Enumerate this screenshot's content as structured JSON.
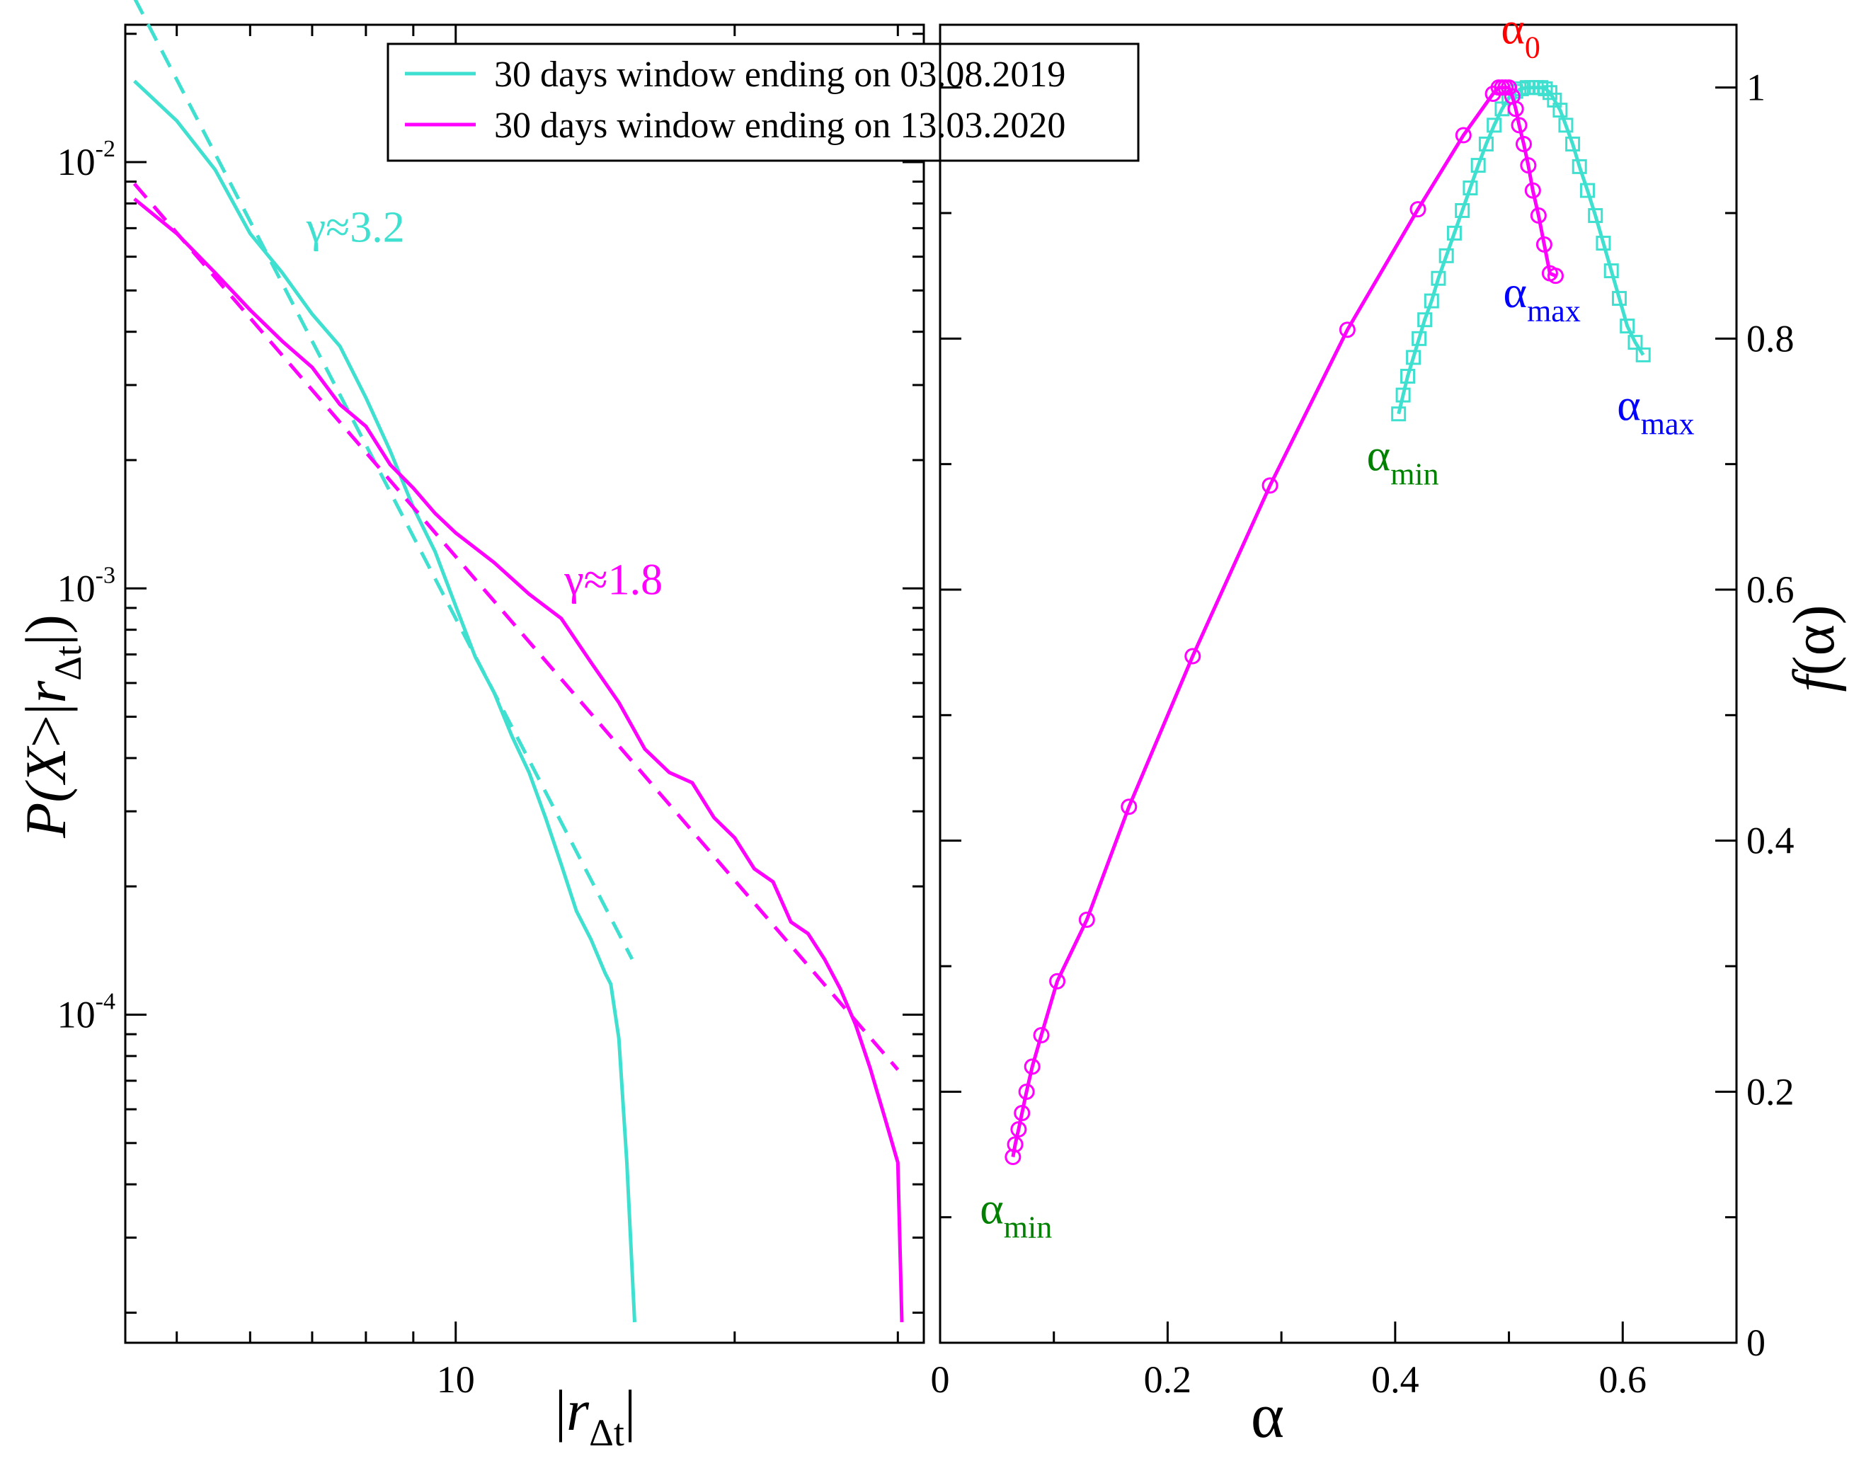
{
  "chart_data": [
    {
      "type": "line",
      "panel": "left",
      "scale": {
        "x": "log",
        "y": "log"
      },
      "xlim": [
        4.4,
        32
      ],
      "ylim": [
        1.7e-05,
        0.021
      ],
      "xlabel_parts": {
        "open": "|",
        "var": "r",
        "sub": "Δt",
        "close": "|"
      },
      "ylabel_parts": {
        "fn": "P(",
        "var": "X",
        "mid": ">|",
        "var2": "r",
        "sub": "Δt",
        "close": "|)"
      },
      "x_tick_labels": [
        {
          "value": 10,
          "label": "10"
        }
      ],
      "y_tick_labels": [
        {
          "value": 0.01,
          "base": "10",
          "exp": "-2"
        },
        {
          "value": 0.001,
          "base": "10",
          "exp": "-3"
        },
        {
          "value": 0.0001,
          "base": "10",
          "exp": "-4"
        }
      ],
      "legend": {
        "placement": "top",
        "entries": [
          {
            "label": "30 days window ending on 03.08.2019",
            "color": "#40e0d0"
          },
          {
            "label": "30 days window ending on 13.03.2020",
            "color": "#ff00ff"
          }
        ]
      },
      "series": [
        {
          "name": "30 days window ending on 03.08.2019",
          "color": "#40e0d0",
          "style": "solid",
          "x": [
            4.5,
            5.0,
            5.5,
            6.0,
            6.5,
            7.0,
            7.5,
            8.0,
            8.5,
            9.0,
            9.5,
            10.0,
            10.5,
            11.0,
            11.5,
            12.0,
            12.5,
            13.0,
            13.5,
            14.0,
            14.5,
            14.7,
            15.0,
            15.3,
            15.6
          ],
          "y": [
            0.0155,
            0.0125,
            0.0096,
            0.0068,
            0.0055,
            0.0044,
            0.0037,
            0.0028,
            0.0021,
            0.00155,
            0.00122,
            0.00091,
            0.00069,
            0.00057,
            0.00045,
            0.00037,
            0.00029,
            0.000225,
            0.000175,
            0.00015,
            0.000125,
            0.000118,
            8.8e-05,
            4.5e-05,
            1.9e-05
          ]
        },
        {
          "name": "γ≈3.2 fit",
          "color": "#40e0d0",
          "style": "dashed",
          "x": [
            4.5,
            15.5
          ],
          "y": [
            0.0243,
            0.000135
          ]
        },
        {
          "name": "30 days window ending on 13.03.2020",
          "color": "#ff00ff",
          "style": "solid",
          "x": [
            4.5,
            5.0,
            5.5,
            6.0,
            6.5,
            7.0,
            7.5,
            8.0,
            8.5,
            9.0,
            9.5,
            10.0,
            11.0,
            12.0,
            13.0,
            14.0,
            15.0,
            16.0,
            17.0,
            18.0,
            19.0,
            20.0,
            21.0,
            22.0,
            23.0,
            24.0,
            25.0,
            26.0,
            27.0,
            28.0,
            29.0,
            30.0,
            30.3
          ],
          "y": [
            0.0082,
            0.0068,
            0.0055,
            0.0045,
            0.0038,
            0.0033,
            0.0027,
            0.0024,
            0.00195,
            0.00172,
            0.0015,
            0.00135,
            0.00115,
            0.00097,
            0.00085,
            0.00067,
            0.00054,
            0.00042,
            0.00037,
            0.00035,
            0.00029,
            0.00026,
            0.00022,
            0.000205,
            0.000165,
            0.000155,
            0.000135,
            0.000115,
            9.5e-05,
            7.5e-05,
            5.8e-05,
            4.5e-05,
            1.9e-05
          ]
        },
        {
          "name": "γ≈1.8 fit",
          "color": "#ff00ff",
          "style": "dashed",
          "x": [
            4.5,
            30.0
          ],
          "y": [
            0.0089,
            7.43e-05
          ]
        }
      ],
      "annotations": [
        {
          "text": "γ≈3.2",
          "color": "#40e0d0",
          "x": 6.9,
          "y": 0.0065
        },
        {
          "text": "γ≈1.8",
          "color": "#ff00ff",
          "x": 13.1,
          "y": 0.00097
        }
      ]
    },
    {
      "type": "line",
      "panel": "right",
      "xlim": [
        0,
        0.7
      ],
      "ylim": [
        0,
        1.05
      ],
      "xlabel": "α",
      "ylabel_parts": {
        "fn": "f",
        "arg": "(α)"
      },
      "x_ticks": [
        0,
        0.2,
        0.4,
        0.6
      ],
      "x_tick_labels": [
        "0",
        "0.2",
        "0.4",
        "0.6"
      ],
      "y_ticks": [
        0,
        0.2,
        0.4,
        0.6,
        0.8,
        1.0
      ],
      "y_tick_labels": [
        "0",
        "0.2",
        "0.4",
        "0.6",
        "0.8",
        "1"
      ],
      "series": [
        {
          "name": "30 days window ending on 03.08.2019",
          "color": "#40e0d0",
          "marker": "square",
          "x": [
            0.403,
            0.407,
            0.411,
            0.416,
            0.421,
            0.426,
            0.432,
            0.438,
            0.445,
            0.452,
            0.459,
            0.466,
            0.473,
            0.48,
            0.487,
            0.494,
            0.5,
            0.506,
            0.511,
            0.516,
            0.52,
            0.524,
            0.528,
            0.532,
            0.536,
            0.54,
            0.545,
            0.55,
            0.556,
            0.562,
            0.569,
            0.576,
            0.583,
            0.59,
            0.597,
            0.604,
            0.611,
            0.618
          ],
          "y": [
            0.74,
            0.755,
            0.77,
            0.785,
            0.8,
            0.815,
            0.83,
            0.848,
            0.866,
            0.884,
            0.902,
            0.92,
            0.938,
            0.955,
            0.97,
            0.983,
            0.992,
            0.997,
            0.999,
            1.0,
            1.0,
            1.0,
            1.0,
            0.999,
            0.996,
            0.99,
            0.982,
            0.97,
            0.955,
            0.937,
            0.918,
            0.898,
            0.876,
            0.854,
            0.832,
            0.81,
            0.797,
            0.787
          ]
        },
        {
          "name": "30 days window ending on 13.03.2020",
          "color": "#ff00ff",
          "marker": "circle",
          "x": [
            0.064,
            0.066,
            0.069,
            0.072,
            0.076,
            0.081,
            0.089,
            0.103,
            0.129,
            0.166,
            0.222,
            0.29,
            0.358,
            0.42,
            0.46,
            0.486,
            0.491,
            0.494,
            0.497,
            0.5,
            0.503,
            0.506,
            0.509,
            0.513,
            0.517,
            0.521,
            0.526,
            0.531,
            0.536,
            0.541
          ],
          "y": [
            0.148,
            0.158,
            0.17,
            0.183,
            0.2,
            0.22,
            0.245,
            0.288,
            0.337,
            0.427,
            0.547,
            0.683,
            0.807,
            0.903,
            0.962,
            0.995,
            1.0,
            1.0,
            1.0,
            1.0,
            0.993,
            0.983,
            0.97,
            0.955,
            0.938,
            0.918,
            0.898,
            0.875,
            0.852,
            0.85
          ]
        }
      ],
      "annotations": [
        {
          "sym": "α",
          "sub": "0",
          "color": "#ff0000",
          "x": 0.493,
          "y": 1.035
        },
        {
          "sym": "α",
          "sub": "max",
          "color": "#0000ff",
          "x": 0.495,
          "y": 0.825
        },
        {
          "sym": "α",
          "sub": "max",
          "color": "#0000ff",
          "x": 0.595,
          "y": 0.735
        },
        {
          "sym": "α",
          "sub": "min",
          "color": "#008000",
          "x": 0.375,
          "y": 0.695
        },
        {
          "sym": "α",
          "sub": "min",
          "color": "#008000",
          "x": 0.035,
          "y": 0.095
        }
      ]
    }
  ]
}
